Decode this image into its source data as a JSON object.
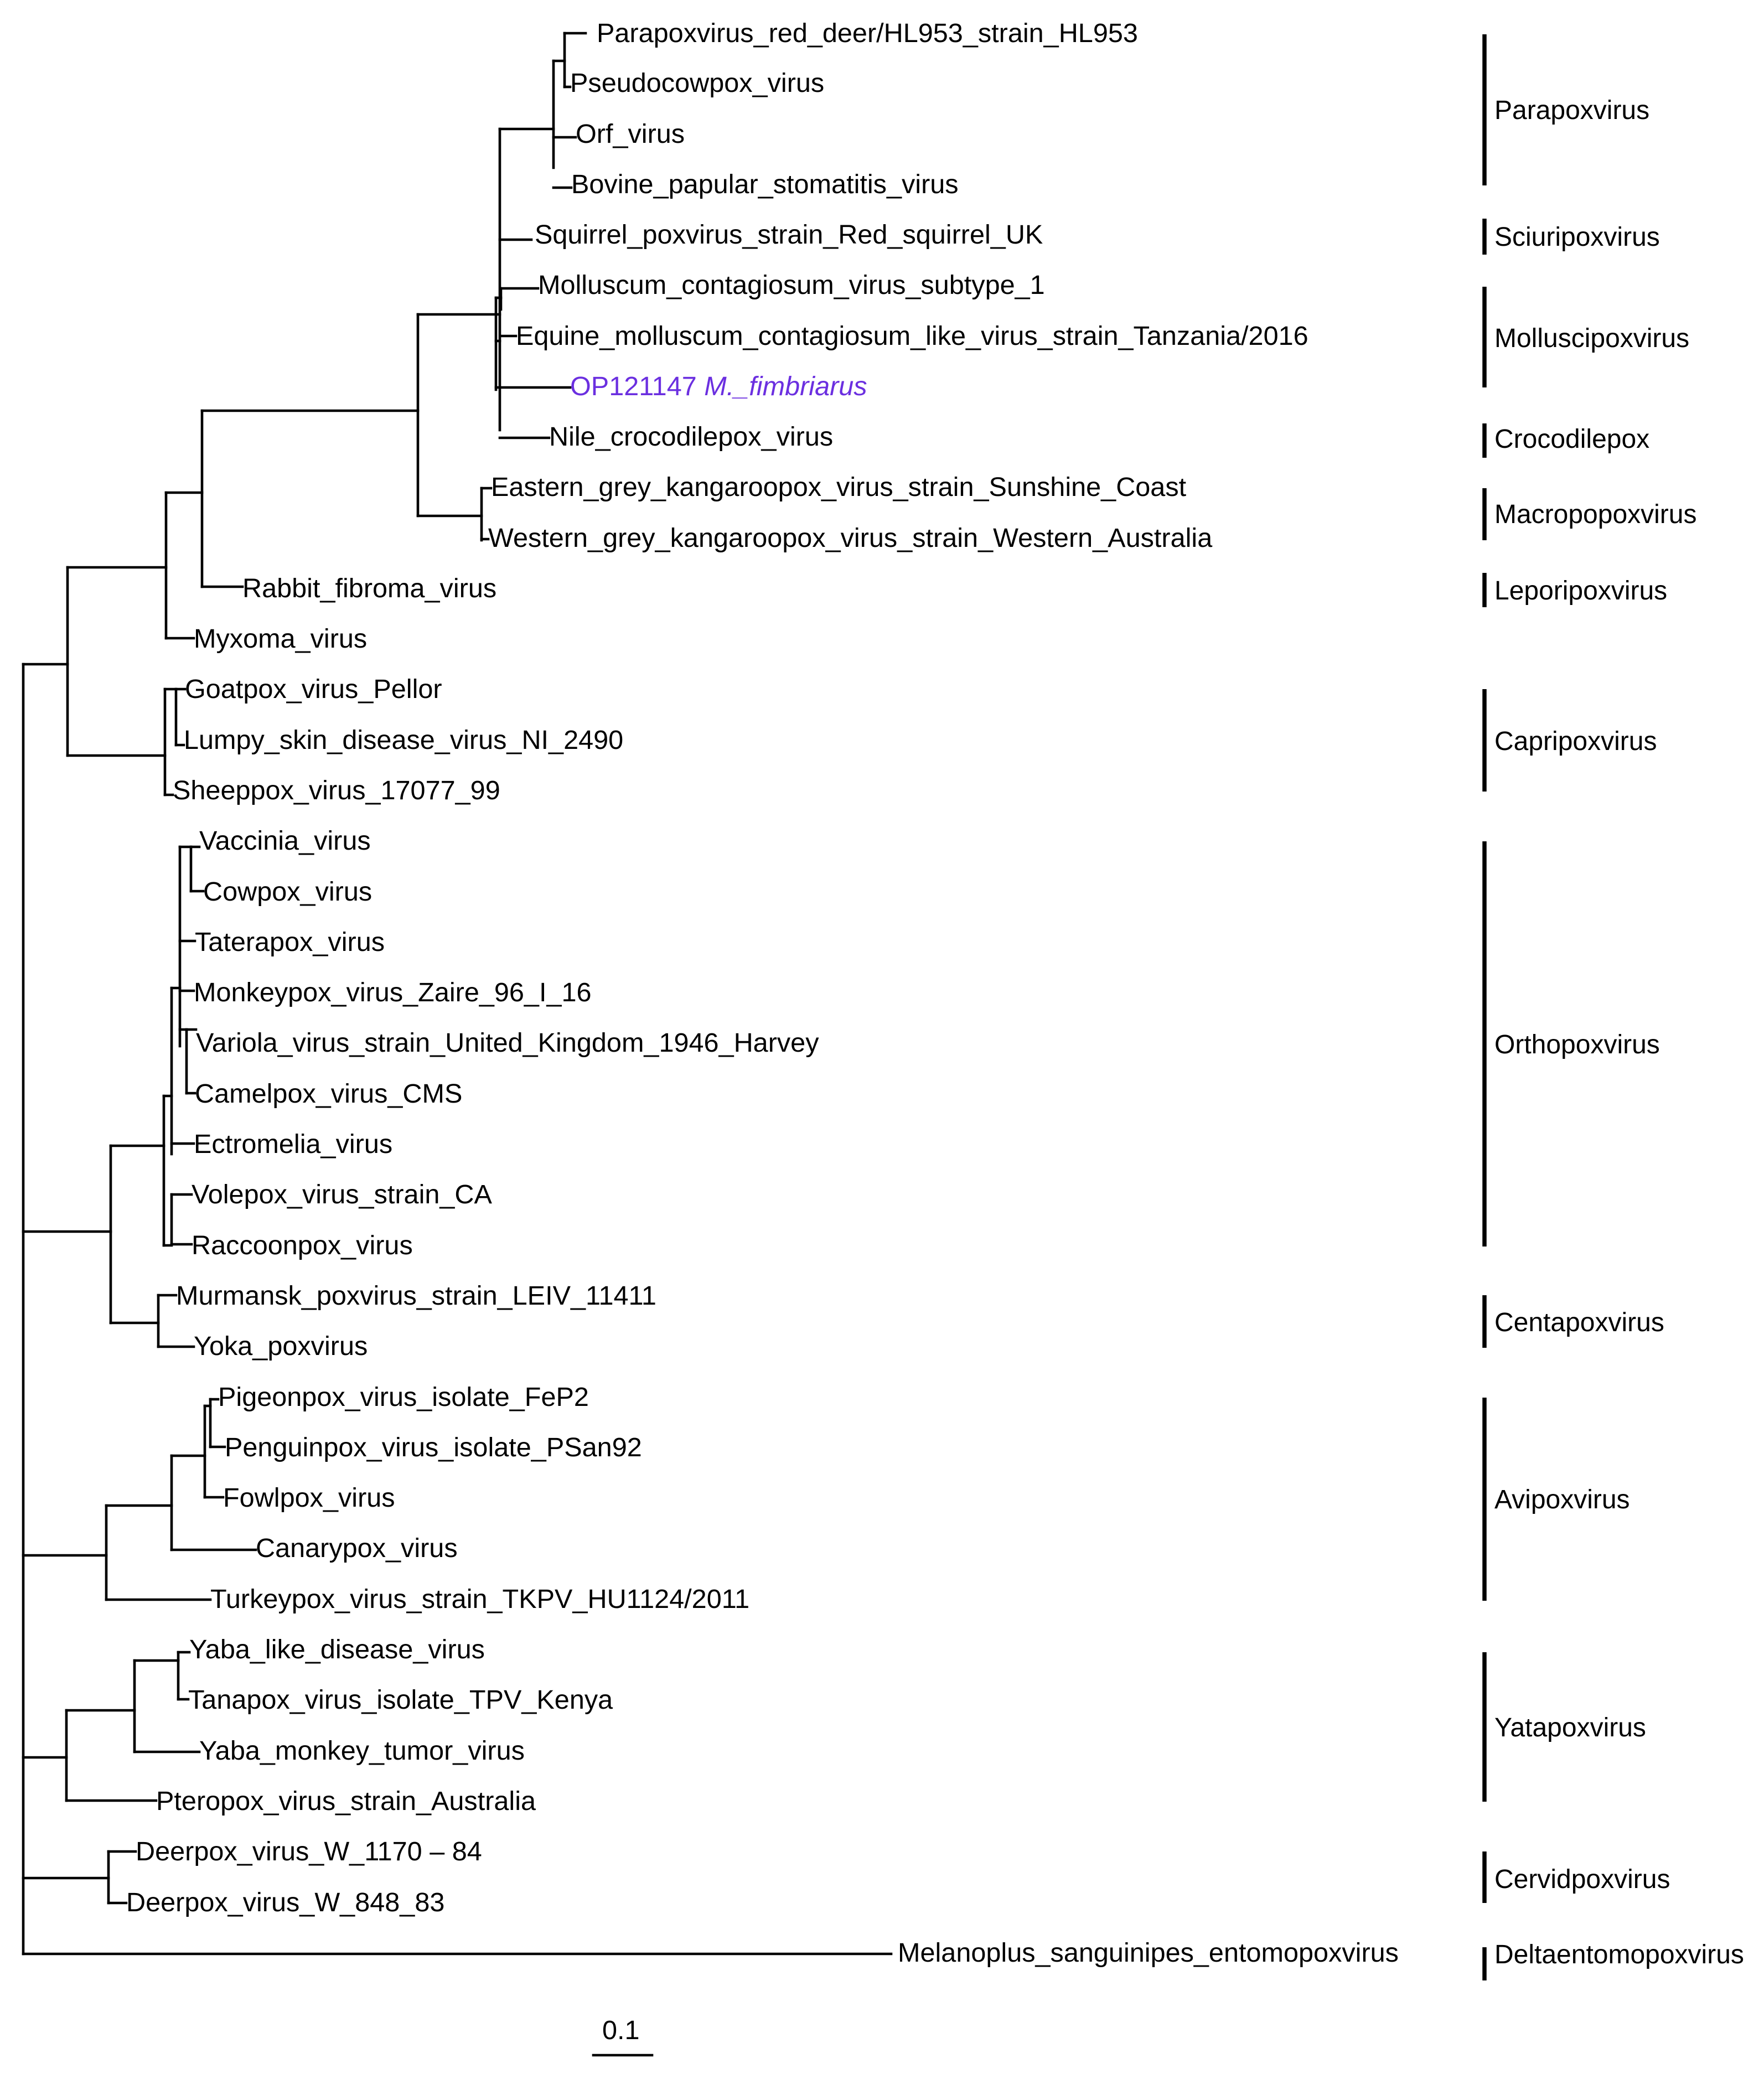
{
  "figure": {
    "type": "phylogenetic_tree",
    "scale_bar_label": "0.1",
    "taxa": [
      {
        "name": "Parapoxvirus_red_deer/HL953_strain_HL953"
      },
      {
        "name": "Pseudocowpox_virus"
      },
      {
        "name": "Orf_virus"
      },
      {
        "name": "Bovine_papular_stomatitis_virus"
      },
      {
        "name": "Squirrel_poxvirus_strain_Red_squirrel_UK"
      },
      {
        "name": "Molluscum_contagiosum_virus_subtype_1"
      },
      {
        "name": "Equine_molluscum_contagiosum_like_virus_strain_Tanzania/2016"
      },
      {
        "name": "OP121147",
        "species": "M._fimbriarus",
        "highlight": true
      },
      {
        "name": "Nile_crocodilepox_virus"
      },
      {
        "name": "Eastern_grey_kangaroopox_virus_strain_Sunshine_Coast"
      },
      {
        "name": "Western_grey_kangaroopox_virus_strain_Western_Australia"
      },
      {
        "name": "Rabbit_fibroma_virus"
      },
      {
        "name": "Myxoma_virus"
      },
      {
        "name": "Goatpox_virus_Pellor"
      },
      {
        "name": "Lumpy_skin_disease_virus_NI_2490"
      },
      {
        "name": "Sheeppox_virus_17077_99"
      },
      {
        "name": "Vaccinia_virus"
      },
      {
        "name": "Cowpox_virus"
      },
      {
        "name": "Taterapox_virus"
      },
      {
        "name": "Monkeypox_virus_Zaire_96_I_16"
      },
      {
        "name": "Variola_virus_strain_United_Kingdom_1946_Harvey"
      },
      {
        "name": "Camelpox_virus_CMS"
      },
      {
        "name": "Ectromelia_virus"
      },
      {
        "name": "Volepox_virus_strain_CA"
      },
      {
        "name": "Raccoonpox_virus"
      },
      {
        "name": "Murmansk_poxvirus_strain_LEIV_11411"
      },
      {
        "name": "Yoka_poxvirus"
      },
      {
        "name": "Pigeonpox_virus_isolate_FeP2"
      },
      {
        "name": "Penguinpox_virus_isolate_PSan92"
      },
      {
        "name": "Fowlpox_virus"
      },
      {
        "name": "Canarypox_virus"
      },
      {
        "name": "Turkeypox_virus_strain_TKPV_HU1124/2011"
      },
      {
        "name": "Yaba_like_disease_virus"
      },
      {
        "name": "Tanapox_virus_isolate_TPV_Kenya"
      },
      {
        "name": "Yaba_monkey_tumor_virus"
      },
      {
        "name": "Pteropox_virus_strain_Australia"
      },
      {
        "name": "Deerpox_virus_W_1170 – 84"
      },
      {
        "name": "Deerpox_virus_W_848_83"
      },
      {
        "name": "Melanoplus_sanguinipes_entomopoxvirus"
      }
    ],
    "clades": [
      {
        "name": "Parapoxvirus"
      },
      {
        "name": "Sciuripoxvirus"
      },
      {
        "name": "Molluscipoxvirus"
      },
      {
        "name": "Crocodilepox"
      },
      {
        "name": "Macropopoxvirus"
      },
      {
        "name": "Leporipoxvirus"
      },
      {
        "name": "Capripoxvirus"
      },
      {
        "name": "Orthopoxvirus"
      },
      {
        "name": "Centapoxvirus"
      },
      {
        "name": "Avipoxvirus"
      },
      {
        "name": "Yatapoxvirus"
      },
      {
        "name": "Cervidpoxvirus"
      },
      {
        "name": "Deltaentomopoxvirus"
      }
    ],
    "colors": {
      "branch": "#000000",
      "highlight": "#6b2fe0"
    }
  }
}
